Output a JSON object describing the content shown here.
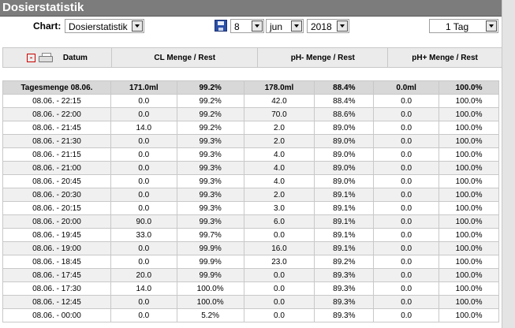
{
  "title": "Dosierstatistik",
  "controls": {
    "chart_label": "Chart:",
    "chart_value": "Dosierstatistik",
    "day": "8",
    "month": "jun",
    "year": "2018",
    "range": "1 Tag"
  },
  "columns": {
    "datum": "Datum",
    "cl": "CL Menge / Rest",
    "ph_minus": "pH- Menge / Rest",
    "ph_plus": "pH+ Menge / Rest"
  },
  "rows": [
    [
      "Tagesmenge 08.06.",
      "171.0ml",
      "99.2%",
      "178.0ml",
      "88.4%",
      "0.0ml",
      "100.0%"
    ],
    [
      "08.06. - 22:15",
      "0.0",
      "99.2%",
      "42.0",
      "88.4%",
      "0.0",
      "100.0%"
    ],
    [
      "08.06. - 22:00",
      "0.0",
      "99.2%",
      "70.0",
      "88.6%",
      "0.0",
      "100.0%"
    ],
    [
      "08.06. - 21:45",
      "14.0",
      "99.2%",
      "2.0",
      "89.0%",
      "0.0",
      "100.0%"
    ],
    [
      "08.06. - 21:30",
      "0.0",
      "99.3%",
      "2.0",
      "89.0%",
      "0.0",
      "100.0%"
    ],
    [
      "08.06. - 21:15",
      "0.0",
      "99.3%",
      "4.0",
      "89.0%",
      "0.0",
      "100.0%"
    ],
    [
      "08.06. - 21:00",
      "0.0",
      "99.3%",
      "4.0",
      "89.0%",
      "0.0",
      "100.0%"
    ],
    [
      "08.06. - 20:45",
      "0.0",
      "99.3%",
      "4.0",
      "89.0%",
      "0.0",
      "100.0%"
    ],
    [
      "08.06. - 20:30",
      "0.0",
      "99.3%",
      "2.0",
      "89.1%",
      "0.0",
      "100.0%"
    ],
    [
      "08.06. - 20:15",
      "0.0",
      "99.3%",
      "3.0",
      "89.1%",
      "0.0",
      "100.0%"
    ],
    [
      "08.06. - 20:00",
      "90.0",
      "99.3%",
      "6.0",
      "89.1%",
      "0.0",
      "100.0%"
    ],
    [
      "08.06. - 19:45",
      "33.0",
      "99.7%",
      "0.0",
      "89.1%",
      "0.0",
      "100.0%"
    ],
    [
      "08.06. - 19:00",
      "0.0",
      "99.9%",
      "16.0",
      "89.1%",
      "0.0",
      "100.0%"
    ],
    [
      "08.06. - 18:45",
      "0.0",
      "99.9%",
      "23.0",
      "89.2%",
      "0.0",
      "100.0%"
    ],
    [
      "08.06. - 17:45",
      "20.0",
      "99.9%",
      "0.0",
      "89.3%",
      "0.0",
      "100.0%"
    ],
    [
      "08.06. - 17:30",
      "14.0",
      "100.0%",
      "0.0",
      "89.3%",
      "0.0",
      "100.0%"
    ],
    [
      "08.06. - 12:45",
      "0.0",
      "100.0%",
      "0.0",
      "89.3%",
      "0.0",
      "100.0%"
    ],
    [
      "08.06. - 00:00",
      "0.0",
      "5.2%",
      "0.0",
      "89.3%",
      "0.0",
      "100.0%"
    ]
  ],
  "icons": {
    "collapse": "minus-icon",
    "print": "printer-icon",
    "save": "floppy-save-icon"
  },
  "colors": {
    "titlebar": "#7c7c7c",
    "header": "#ebebeb",
    "summary": "#d8d8d8",
    "alt": "#f0f0f0",
    "collapse": "#cc0000"
  }
}
